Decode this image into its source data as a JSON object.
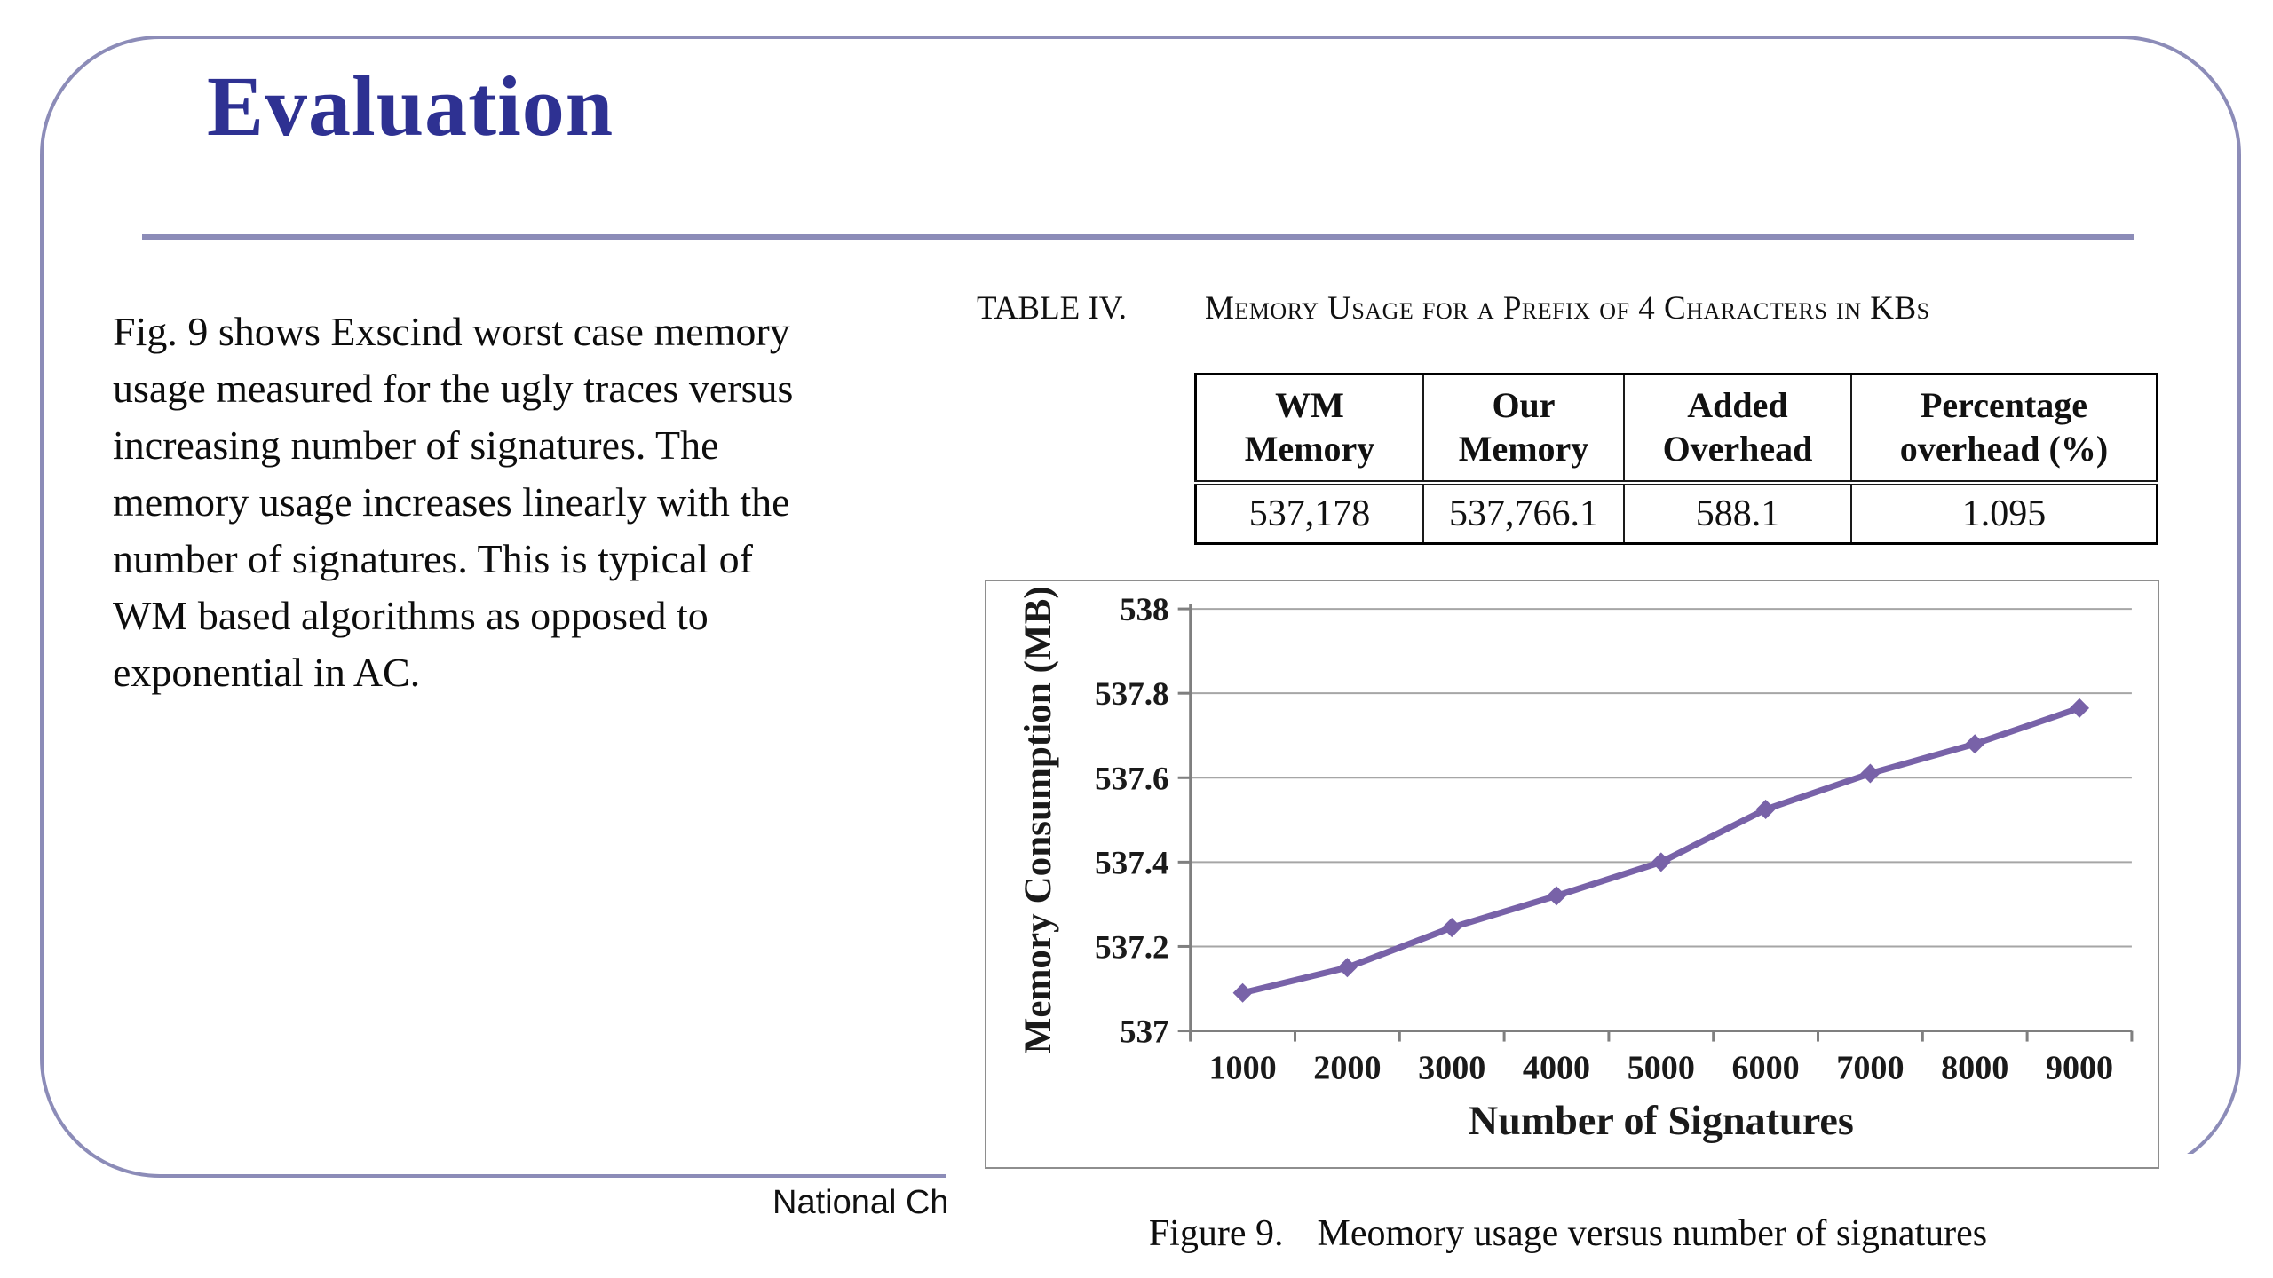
{
  "slide": {
    "title": "Evaluation",
    "footer": "National Ch",
    "accent_color": "#8c8cb8",
    "title_color": "#2e3192"
  },
  "body": {
    "lines": [
      "Fig. 9 shows Exscind worst case memory",
      "usage measured for the ugly traces versus",
      "increasing number of signatures. The",
      "memory usage increases linearly with the",
      "number of signatures. This is typical of",
      "WM based algorithms as opposed to",
      "exponential in AC."
    ]
  },
  "table": {
    "caption_label": "TABLE IV.",
    "caption_text": "Memory Usage for a Prefix of 4 Characters in KBs",
    "headers": [
      "WM\nMemory",
      "Our\nMemory",
      "Added\nOverhead",
      "Percentage\noverhead (%)"
    ],
    "values": [
      "537,178",
      "537,766.1",
      "588.1",
      "1.095"
    ]
  },
  "figure": {
    "caption_label": "Figure 9.",
    "caption_text": "Meomory usage versus number of signatures"
  },
  "chart_data": {
    "type": "line",
    "title": "",
    "x": [
      1000,
      2000,
      3000,
      4000,
      5000,
      6000,
      7000,
      8000,
      9000
    ],
    "series": [
      {
        "name": "Memory Consumption",
        "values": [
          537.09,
          537.15,
          537.245,
          537.32,
          537.4,
          537.525,
          537.61,
          537.68,
          537.765
        ]
      }
    ],
    "xlabel": "Number of Signatures",
    "ylabel": "Memory Consumption (MB)",
    "ylim": [
      537,
      538
    ],
    "y_ticks": [
      537,
      537.2,
      537.4,
      537.6,
      537.8,
      538
    ],
    "grid": true,
    "legend": "none",
    "line_color": "#7862a8",
    "marker": "diamond",
    "grid_color": "#a6a6a6",
    "axis_color": "#7f7f7f"
  }
}
